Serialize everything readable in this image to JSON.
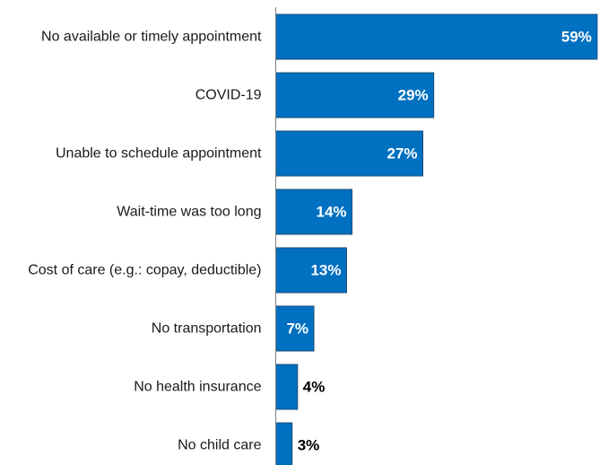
{
  "chart_data": {
    "type": "bar",
    "orientation": "horizontal",
    "categories": [
      "No available or timely appointment",
      "COVID-19",
      "Unable to schedule appointment",
      "Wait-time was too long",
      "Cost of care (e.g.: copay, deductible)",
      "No transportation",
      "No health insurance",
      "No child care"
    ],
    "values": [
      59,
      29,
      27,
      14,
      13,
      7,
      4,
      3
    ],
    "value_labels": [
      "59%",
      "29%",
      "27%",
      "14%",
      "13%",
      "7%",
      "4%",
      "3%"
    ],
    "unit": "%",
    "xlim": [
      0,
      60
    ],
    "title": "",
    "xlabel": "",
    "ylabel": "",
    "grid": false,
    "legend": "none",
    "colors": {
      "bar": "#0070C0",
      "bar_border": "#1F4E79",
      "label_inside": "#ffffff",
      "label_outside": "#000000",
      "axis": "#7f7f7f"
    }
  }
}
